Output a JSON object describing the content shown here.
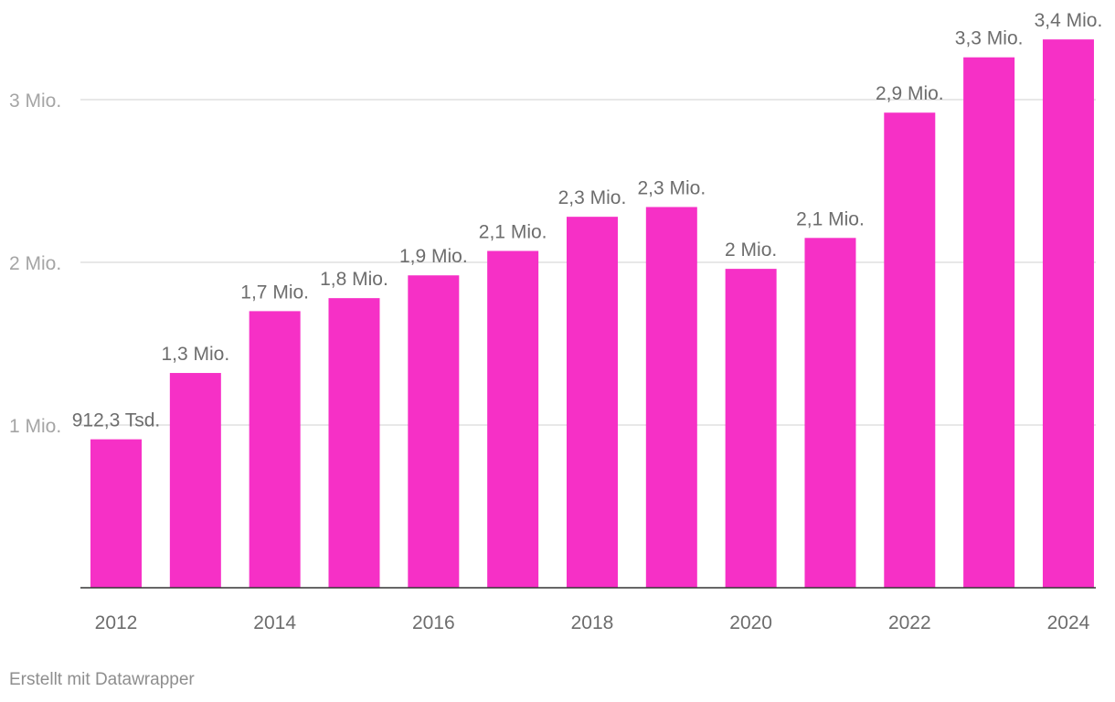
{
  "chart_data": {
    "type": "bar",
    "categories": [
      "2012",
      "2013",
      "2014",
      "2015",
      "2016",
      "2017",
      "2018",
      "2019",
      "2020",
      "2021",
      "2022",
      "2023",
      "2024"
    ],
    "values": [
      912300,
      1320000,
      1700000,
      1780000,
      1920000,
      2070000,
      2280000,
      2340000,
      1960000,
      2150000,
      2920000,
      3260000,
      3370000
    ],
    "data_labels": [
      "912,3 Tsd.",
      "1,3 Mio.",
      "1,7 Mio.",
      "1,8 Mio.",
      "1,9 Mio.",
      "2,1 Mio.",
      "2,3 Mio.",
      "2,3 Mio.",
      "2 Mio.",
      "2,1 Mio.",
      "2,9 Mio.",
      "3,3 Mio.",
      "3,4 Mio."
    ],
    "x_tick_labels": [
      "2012",
      "2014",
      "2016",
      "2018",
      "2020",
      "2022",
      "2024"
    ],
    "y_ticks": [
      {
        "value": 1000000,
        "label": "1 Mio."
      },
      {
        "value": 2000000,
        "label": "2 Mio."
      },
      {
        "value": 3000000,
        "label": "3 Mio."
      }
    ],
    "ylim": [
      0,
      3600000
    ],
    "title": "",
    "xlabel": "",
    "ylabel": "",
    "grid": true,
    "bar_color": "#f630c6"
  },
  "footer": {
    "credit": "Erstellt mit Datawrapper"
  }
}
